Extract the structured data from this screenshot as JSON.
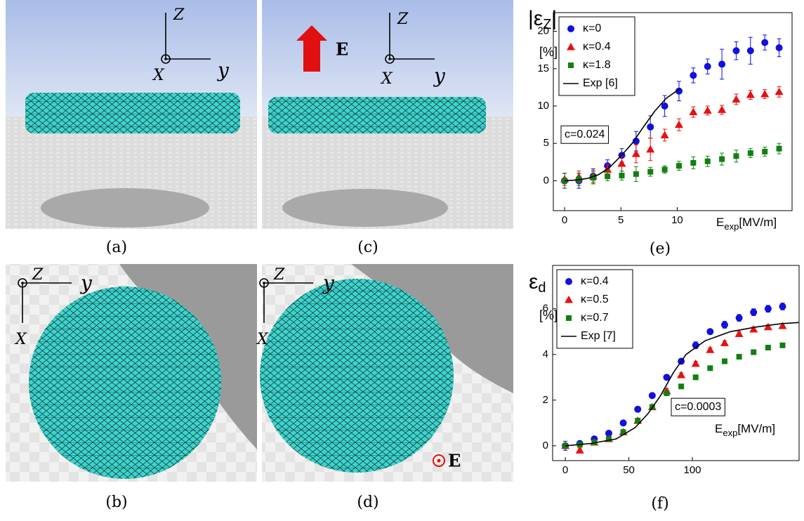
{
  "panels": {
    "a": {
      "label": "(a)",
      "z": "Z",
      "y": "y",
      "x": "X"
    },
    "b": {
      "label": "(b)",
      "z": "Z",
      "y": "y",
      "x": "X"
    },
    "c": {
      "label": "(c)",
      "z": "Z",
      "y": "y",
      "x": "X",
      "field": "E"
    },
    "d": {
      "label": "(d)",
      "z": "Z",
      "y": "y",
      "x": "X",
      "field": "E"
    },
    "e": {
      "label": "(e)"
    },
    "f": {
      "label": "(f)"
    }
  },
  "chart_data": [
    {
      "type": "scatter",
      "ylabel": {
        "symbol": "ε",
        "sub": "Z"
      },
      "yunit": "[%]",
      "xlabel": {
        "symbol": "E",
        "sub": "exp",
        "unit": "[MV/m]"
      },
      "annotation": "c=0.024",
      "legend": "upper left",
      "xlim": [
        -1,
        20.2
      ],
      "ylim": [
        -4,
        22.5
      ],
      "xticks": [
        0,
        5,
        10
      ],
      "yticks": [
        0,
        5,
        10,
        15,
        20
      ],
      "x": [
        0,
        1.27,
        2.54,
        3.81,
        5.08,
        6.35,
        7.62,
        8.89,
        10.16,
        11.43,
        12.7,
        13.97,
        15.24,
        16.51,
        17.78,
        19.05
      ],
      "series": [
        {
          "name": "κ=0",
          "color": "#1010e0",
          "marker": "circle",
          "values": [
            0,
            0,
            0.6,
            2,
            3.4,
            5.3,
            7.2,
            10,
            12,
            14.1,
            15.3,
            15.6,
            17.4,
            17.4,
            18.5,
            17.8
          ],
          "errors": [
            1,
            1,
            1,
            0.8,
            0.9,
            1.3,
            1.5,
            1.4,
            1.3,
            1,
            1,
            2,
            1.2,
            1.8,
            1,
            1.2
          ]
        },
        {
          "name": "κ=0.4",
          "color": "#e81010",
          "marker": "triangle",
          "values": [
            0.2,
            0.5,
            0.6,
            1.5,
            2.3,
            3.6,
            4.2,
            6.1,
            7.5,
            9.2,
            9.4,
            9.5,
            10.9,
            11.5,
            11.6,
            11.9
          ],
          "errors": [
            0.8,
            0.8,
            0.8,
            0.7,
            1,
            1.2,
            1.5,
            0.8,
            0.8,
            0.7,
            0.6,
            0.6,
            0.7,
            0.6,
            0.6,
            0.7
          ]
        },
        {
          "name": "κ=1.8",
          "color": "#108010",
          "marker": "square",
          "values": [
            0,
            0.2,
            0.4,
            0.6,
            0.7,
            0.9,
            1.2,
            1.5,
            2,
            2.4,
            2.6,
            2.9,
            3.3,
            3.7,
            3.9,
            4.3
          ],
          "errors": [
            1,
            0.8,
            0.8,
            0.6,
            0.6,
            1,
            0.6,
            0.5,
            0.6,
            0.8,
            0.7,
            0.8,
            0.8,
            0.6,
            0.6,
            0.7
          ]
        },
        {
          "name": "Exp [6]",
          "color": "#000000",
          "marker": "line",
          "x": [
            0,
            1,
            2,
            3,
            4,
            5,
            6,
            7,
            8,
            9,
            10.3
          ],
          "values": [
            0,
            0.1,
            0.3,
            0.8,
            1.8,
            3.3,
            5,
            7.2,
            9.3,
            11,
            12.4
          ]
        }
      ]
    },
    {
      "type": "scatter",
      "ylabel": {
        "symbol": "ε",
        "sub": "d"
      },
      "yunit": "[%]",
      "xlabel": {
        "symbol": "E",
        "sub": "exp",
        "unit": "[MV/m]"
      },
      "annotation": "c=0.0003",
      "legend": "upper left",
      "xlim": [
        -10,
        184
      ],
      "ylim": [
        -0.65,
        7.9
      ],
      "xticks": [
        0,
        50,
        100
      ],
      "yticks": [
        0,
        2,
        4,
        6
      ],
      "x": [
        0,
        11.4,
        22.8,
        34.2,
        45.6,
        57,
        68.4,
        79.8,
        91.2,
        102.6,
        114,
        125.4,
        136.8,
        148.2,
        159.6,
        171
      ],
      "series": [
        {
          "name": "κ=0.4",
          "color": "#1010e0",
          "marker": "circle",
          "values": [
            0,
            0.1,
            0.3,
            0.55,
            1,
            1.6,
            2.2,
            3,
            3.7,
            4.4,
            5,
            5.3,
            5.6,
            5.85,
            6,
            6.1
          ],
          "errors": [
            0.2,
            0.1,
            0.1,
            0.1,
            0.1,
            0.1,
            0.1,
            0.1,
            0.1,
            0.15,
            0.1,
            0.15,
            0.15,
            0.15,
            0.15,
            0.15
          ]
        },
        {
          "name": "κ=0.5",
          "color": "#e81010",
          "marker": "triangle",
          "values": [
            0,
            -0.2,
            0.15,
            0.3,
            0.6,
            1.1,
            1.7,
            2.4,
            3.1,
            3.6,
            4.2,
            4.5,
            4.9,
            5.1,
            5.2,
            5.25
          ],
          "errors": [
            0.1,
            0.1,
            0.1,
            0.1,
            0.1,
            0.1,
            0.1,
            0.1,
            0.1,
            0.1,
            0.1,
            0.1,
            0.1,
            0.1,
            0.1,
            0.1
          ]
        },
        {
          "name": "κ=0.7",
          "color": "#108010",
          "marker": "square",
          "values": [
            0,
            0.05,
            0.15,
            0.3,
            0.6,
            1.1,
            1.7,
            2.3,
            2.6,
            3,
            3.4,
            3.7,
            3.9,
            4.1,
            4.3,
            4.4
          ],
          "errors": [
            0.1,
            0.1,
            0.1,
            0.1,
            0.1,
            0.1,
            0.1,
            0.1,
            0.1,
            0.1,
            0.1,
            0.1,
            0.1,
            0.1,
            0.1,
            0.1
          ]
        },
        {
          "name": "Exp [7]",
          "color": "#000000",
          "marker": "line",
          "x": [
            0,
            20,
            40,
            55,
            65,
            75,
            85,
            95,
            110,
            130,
            150,
            170,
            184
          ],
          "values": [
            0,
            0.1,
            0.3,
            0.8,
            1.4,
            2.2,
            3.2,
            4,
            4.6,
            5,
            5.2,
            5.35,
            5.4
          ]
        }
      ]
    }
  ]
}
